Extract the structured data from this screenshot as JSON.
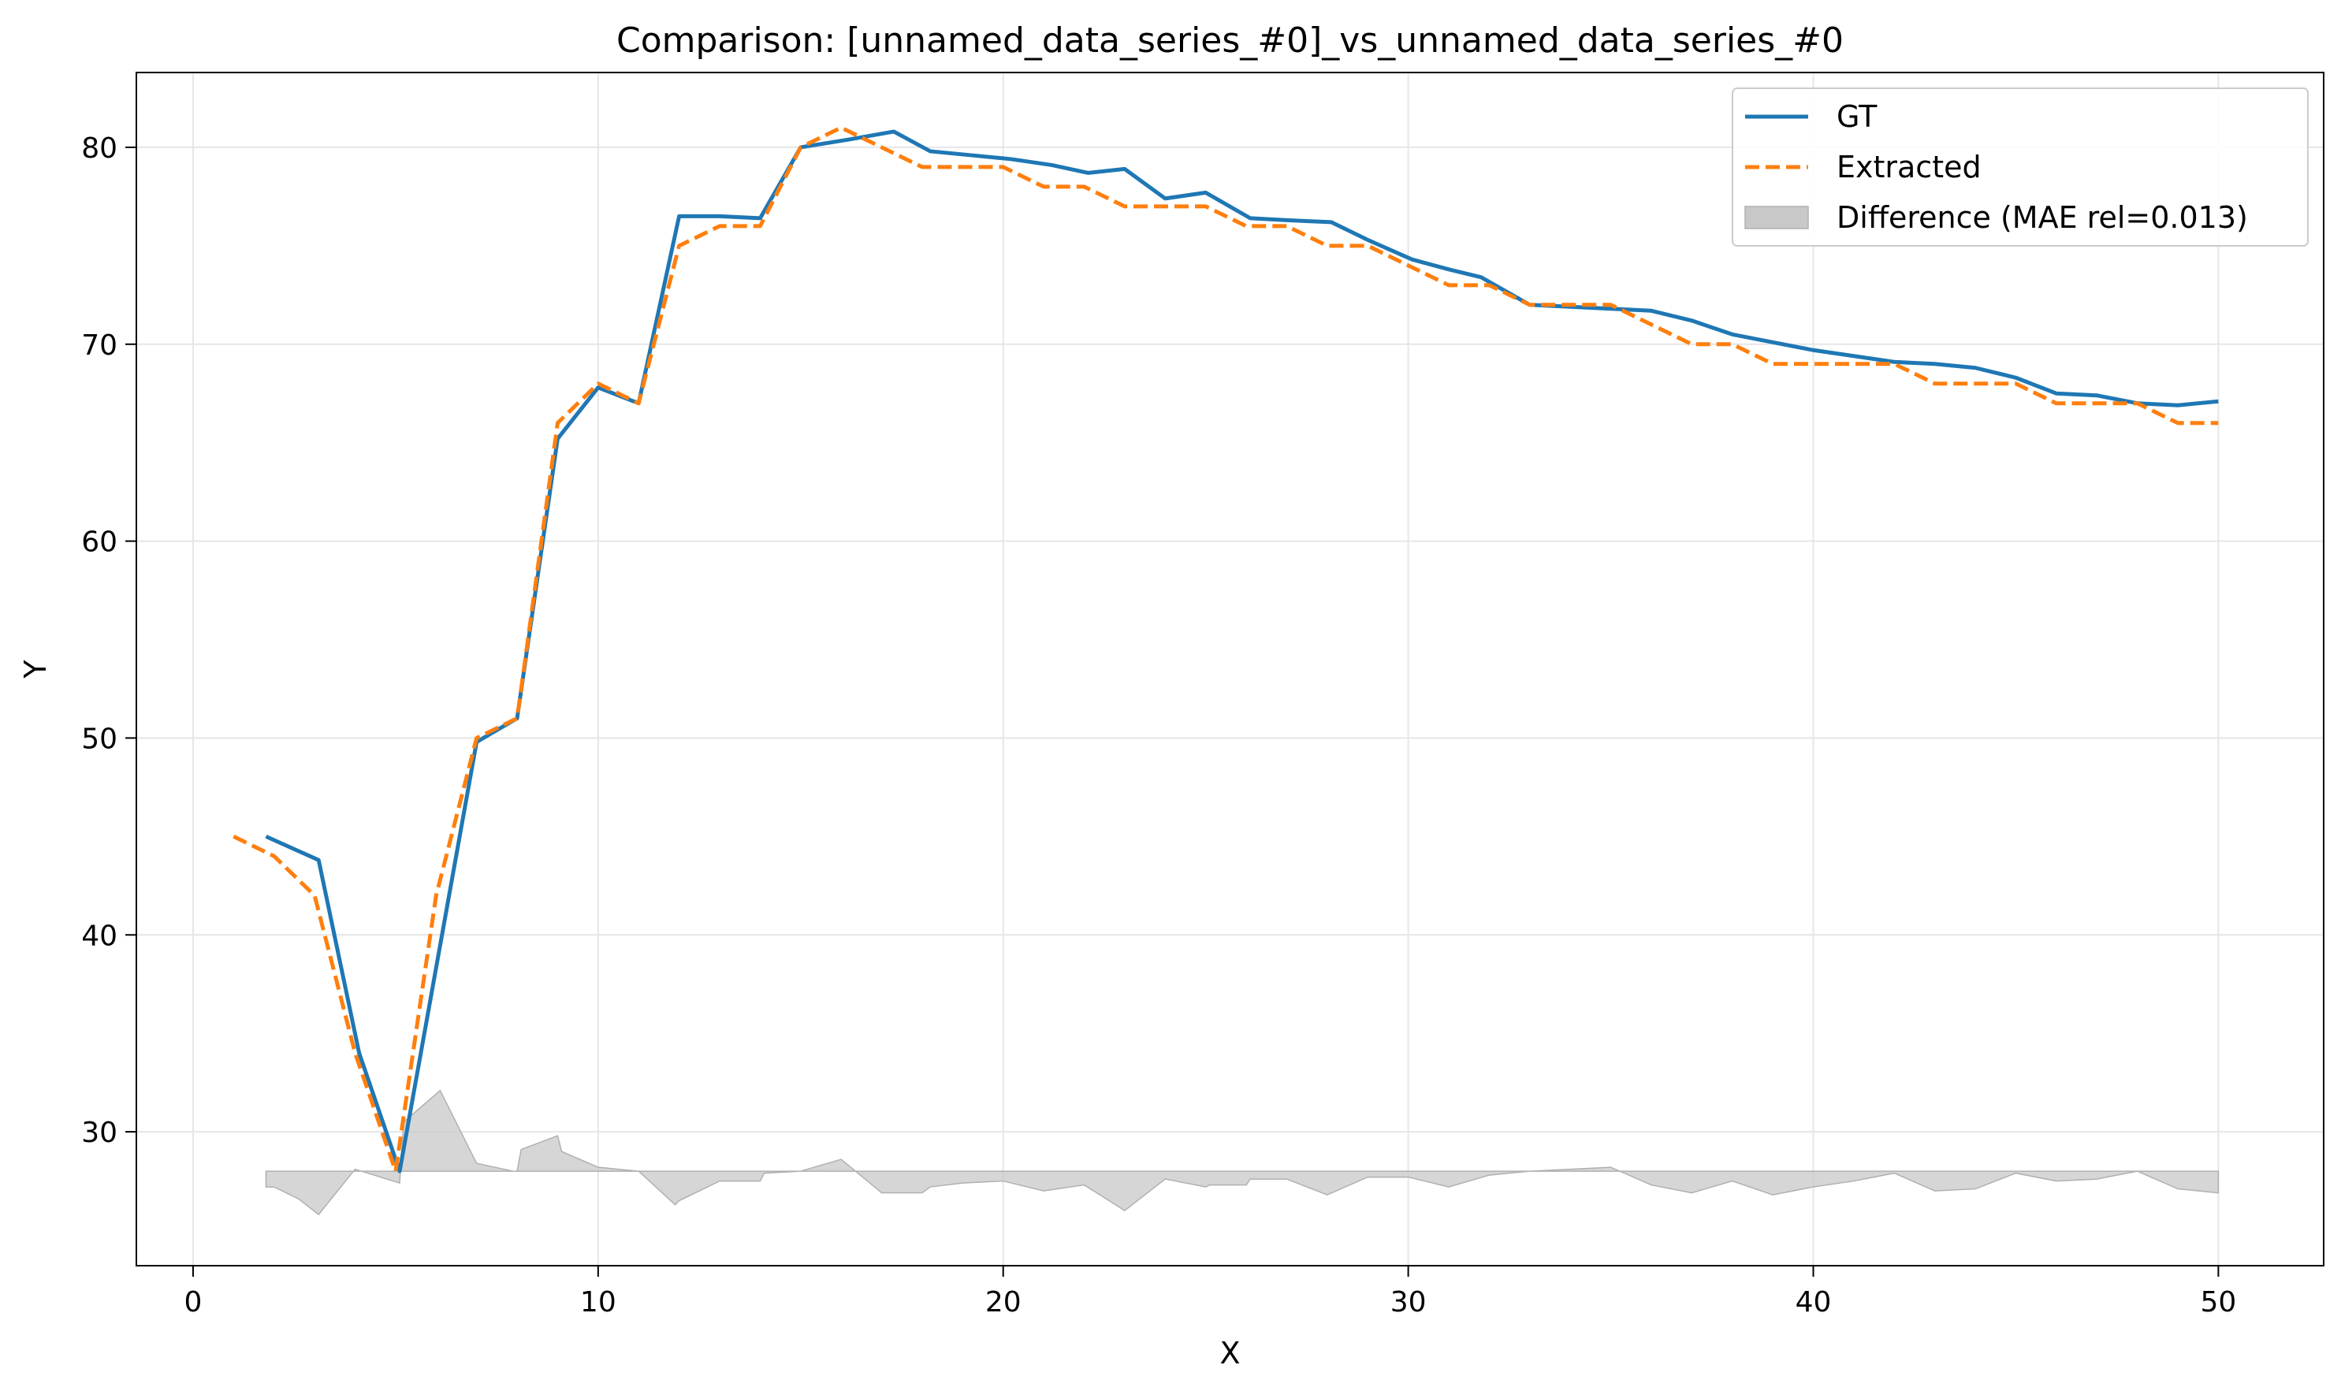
{
  "chart_data": {
    "type": "line",
    "title": "Comparison: [unnamed_data_series_#0]_vs_unnamed_data_series_#0",
    "xlabel": "X",
    "ylabel": "Y",
    "xlim": [
      -1.4,
      52.6
    ],
    "ylim": [
      23.2,
      83.8
    ],
    "xticks": [
      0,
      10,
      20,
      30,
      40,
      50
    ],
    "yticks": [
      30,
      40,
      50,
      60,
      70,
      80
    ],
    "grid": true,
    "legend_position": "top-right",
    "colors": {
      "gt": "#1f77b4",
      "extracted": "#ff7f0e",
      "difference": "#c8c8c8"
    },
    "series": [
      {
        "name": "GT",
        "style": "solid",
        "x": [
          1.8,
          3.1,
          4.1,
          5.1,
          7.0,
          8.0,
          9.0,
          10.0,
          11.0,
          12.0,
          13.0,
          14.0,
          15.0,
          16.2,
          17.3,
          18.2,
          19.2,
          20.2,
          21.2,
          22.1,
          23.0,
          24.0,
          25.0,
          26.1,
          27.0,
          28.1,
          29.0,
          30.1,
          31.0,
          31.8,
          33.0,
          34.0,
          35.0,
          36.0,
          37.0,
          38.0,
          39.0,
          40.0,
          41.0,
          42.0,
          43.0,
          44.0,
          45.0,
          46.0,
          47.0,
          48.0,
          49.0,
          50.0
        ],
        "values": [
          45.0,
          43.8,
          34.0,
          28.0,
          49.8,
          51.0,
          65.2,
          67.8,
          67.0,
          76.5,
          76.5,
          76.4,
          80.0,
          80.4,
          80.8,
          79.8,
          79.6,
          79.4,
          79.1,
          78.7,
          78.9,
          77.4,
          77.7,
          76.4,
          76.3,
          76.2,
          75.3,
          74.3,
          73.8,
          73.4,
          72.0,
          71.9,
          71.8,
          71.7,
          71.2,
          70.5,
          70.1,
          69.7,
          69.4,
          69.1,
          69.0,
          68.8,
          68.3,
          67.5,
          67.4,
          67.0,
          66.9,
          67.1
        ]
      },
      {
        "name": "Extracted",
        "style": "dashed",
        "x": [
          1.0,
          2.0,
          3.0,
          4.0,
          5.0,
          6.0,
          7.0,
          8.0,
          9.0,
          10.0,
          11.0,
          12.0,
          13.0,
          14.0,
          15.0,
          16.0,
          17.0,
          18.0,
          19.0,
          20.0,
          21.0,
          22.0,
          23.0,
          24.0,
          25.0,
          26.0,
          27.0,
          28.0,
          29.0,
          30.0,
          31.0,
          32.0,
          33.0,
          34.0,
          35.0,
          36.0,
          37.0,
          38.0,
          39.0,
          40.0,
          41.0,
          42.0,
          43.0,
          44.0,
          45.0,
          46.0,
          47.0,
          48.0,
          49.0,
          50.0
        ],
        "values": [
          45.0,
          44.0,
          42.0,
          34.0,
          28.0,
          42.0,
          50.0,
          51.0,
          66.0,
          68.0,
          67.0,
          75.0,
          76.0,
          76.0,
          80.0,
          81.0,
          80.0,
          79.0,
          79.0,
          79.0,
          78.0,
          78.0,
          77.0,
          77.0,
          77.0,
          76.0,
          76.0,
          75.0,
          75.0,
          74.0,
          73.0,
          73.0,
          72.0,
          72.0,
          72.0,
          71.0,
          70.0,
          70.0,
          69.0,
          69.0,
          69.0,
          69.0,
          68.0,
          68.0,
          68.0,
          67.0,
          67.0,
          67.0,
          66.0,
          66.0
        ]
      },
      {
        "name": "Difference (MAE rel=0.013)",
        "style": "filled-area",
        "baseline": 28.0,
        "x": [
          1.8,
          2.0,
          2.6,
          3.1,
          4.0,
          5.1,
          5.2,
          6.1,
          7.0,
          7.9,
          8.0,
          8.1,
          9.0,
          9.1,
          10.0,
          11.0,
          11.9,
          12.0,
          13.0,
          14.0,
          14.1,
          15.0,
          16.0,
          17.0,
          18.0,
          18.2,
          19.0,
          20.0,
          21.0,
          22.0,
          23.0,
          24.0,
          25.0,
          25.1,
          26.0,
          26.1,
          27.0,
          28.0,
          29.0,
          30.0,
          31.0,
          32.0,
          33.0,
          34.0,
          35.0,
          36.0,
          37.0,
          38.0,
          39.0,
          40.0,
          41.0,
          42.0,
          43.0,
          44.0,
          45.0,
          46.0,
          47.0,
          48.0,
          49.0,
          50.0
        ],
        "values": [
          27.2,
          27.2,
          26.6,
          25.8,
          28.1,
          27.4,
          30.5,
          32.1,
          28.4,
          28.0,
          28.0,
          29.1,
          29.8,
          29.0,
          28.2,
          28.0,
          26.3,
          26.5,
          27.5,
          27.5,
          27.9,
          28.0,
          28.6,
          26.9,
          26.9,
          27.2,
          27.4,
          27.5,
          27.0,
          27.3,
          26.0,
          27.6,
          27.2,
          27.3,
          27.3,
          27.6,
          27.6,
          26.8,
          27.7,
          27.7,
          27.2,
          27.8,
          28.0,
          28.1,
          28.2,
          27.3,
          26.9,
          27.5,
          26.8,
          27.2,
          27.5,
          27.9,
          27.0,
          27.1,
          27.9,
          27.5,
          27.6,
          28.0,
          27.1,
          26.9
        ]
      }
    ]
  }
}
